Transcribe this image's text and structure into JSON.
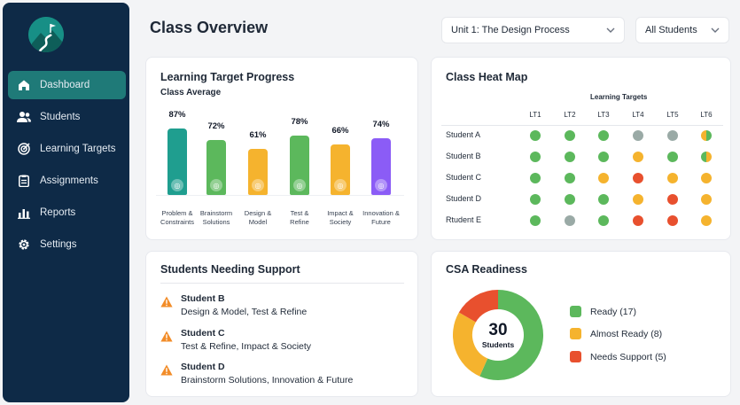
{
  "sidebar": {
    "items": [
      {
        "label": "Dashboard",
        "icon": "home-icon",
        "active": true
      },
      {
        "label": "Students",
        "icon": "users-icon"
      },
      {
        "label": "Learning Targets",
        "icon": "target-icon"
      },
      {
        "label": "Assignments",
        "icon": "clipboard-icon"
      },
      {
        "label": "Reports",
        "icon": "bar-chart-icon"
      },
      {
        "label": "Settings",
        "icon": "gear-icon"
      }
    ]
  },
  "header": {
    "title": "Class Overview",
    "unit_select": "Unit 1: The Design Process",
    "students_select": "All Students"
  },
  "progress": {
    "title": "Learning Target Progress",
    "subtitle": "Class Average",
    "bars": [
      {
        "pct": "87%",
        "value": 87,
        "label1": "Problem &",
        "label2": "Constraints",
        "color": "#1f9e8f"
      },
      {
        "pct": "72%",
        "value": 72,
        "label1": "Brainstorm",
        "label2": "Solutions",
        "color": "#5cb85c"
      },
      {
        "pct": "61%",
        "value": 61,
        "label1": "Design &",
        "label2": "Model",
        "color": "#f5b32e"
      },
      {
        "pct": "78%",
        "value": 78,
        "label1": "Test &",
        "label2": "Refine",
        "color": "#5cb85c"
      },
      {
        "pct": "66%",
        "value": 66,
        "label1": "Impact &",
        "label2": "Society",
        "color": "#f5b32e"
      },
      {
        "pct": "74%",
        "value": 74,
        "label1": "Innovation &",
        "label2": "Future",
        "color": "#8b5cf6"
      }
    ]
  },
  "heatmap": {
    "title": "Class Heat Map",
    "caption": "Learning Targets",
    "columns": [
      "LT1",
      "LT2",
      "LT3",
      "LT4",
      "LT5",
      "LT6"
    ],
    "rows": [
      {
        "name": "Student A",
        "cells": [
          "green",
          "green",
          "green",
          "gray",
          "gray",
          "split-green-yellow"
        ]
      },
      {
        "name": "Student B",
        "cells": [
          "green",
          "green",
          "green",
          "yellow",
          "green",
          "split-yellow-green"
        ]
      },
      {
        "name": "Student C",
        "cells": [
          "green",
          "green",
          "yellow",
          "red",
          "yellow",
          "yellow"
        ]
      },
      {
        "name": "Student D",
        "cells": [
          "green",
          "green",
          "green",
          "yellow",
          "red",
          "yellow"
        ]
      },
      {
        "name": "Rtudent E",
        "cells": [
          "green",
          "gray",
          "green",
          "red",
          "red",
          "yellow"
        ]
      }
    ],
    "colors": {
      "green": "#5cb85c",
      "yellow": "#f5b32e",
      "red": "#e8502e",
      "gray": "#9aaaa6"
    }
  },
  "support": {
    "title": "Students Needing Support",
    "students": [
      {
        "name": "Student B",
        "detail": "Design & Model, Test & Refine"
      },
      {
        "name": "Student C",
        "detail": "Test & Refine, Impact & Society"
      },
      {
        "name": "Student D",
        "detail": "Brainstorm Solutions, Innovation & Future"
      }
    ]
  },
  "csa": {
    "title": "CSA Readiness",
    "total": "30",
    "total_label": "Students",
    "segments": [
      {
        "label": "Ready (17)",
        "value": 17,
        "color": "#5cb85c"
      },
      {
        "label": "Almost Ready (8)",
        "value": 8,
        "color": "#f5b32e"
      },
      {
        "label": "Needs Support (5)",
        "value": 5,
        "color": "#e8502e"
      }
    ]
  }
}
